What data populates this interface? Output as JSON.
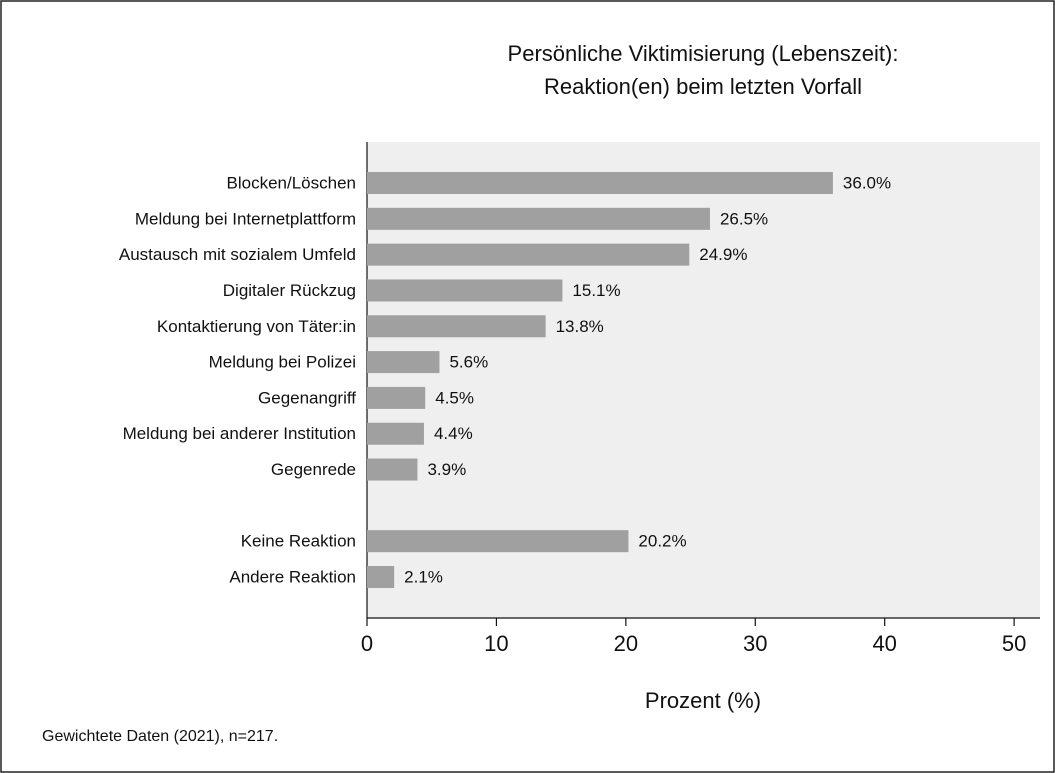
{
  "chart_data": {
    "type": "barh",
    "title": [
      "Persönliche Viktimisierung (Lebenszeit):",
      "Reaktion(en) beim letzten Vorfall"
    ],
    "categories": [
      "Blocken/Löschen",
      "Meldung bei Internetplattform",
      "Austausch mit sozialem Umfeld",
      "Digitaler Rückzug",
      "Kontaktierung von Täter:in",
      "Meldung bei Polizei",
      "Gegenangriff",
      "Meldung bei anderer Institution",
      "Gegenrede",
      null,
      "Keine Reaktion",
      "Andere Reaktion"
    ],
    "values": [
      36.0,
      26.5,
      24.9,
      15.1,
      13.8,
      5.6,
      4.5,
      4.4,
      3.9,
      null,
      20.2,
      2.1
    ],
    "value_labels": [
      "36.0%",
      "26.5%",
      "24.9%",
      "15.1%",
      "13.8%",
      "5.6%",
      "4.5%",
      "4.4%",
      "3.9%",
      null,
      "20.2%",
      "2.1%"
    ],
    "color": "#a0a0a0",
    "xlim": [
      0,
      52
    ],
    "xticks": [
      0,
      10,
      20,
      30,
      40,
      50
    ],
    "xlabel": "Prozent (%)",
    "note": "Gewichtete Daten (2021), n=217."
  }
}
